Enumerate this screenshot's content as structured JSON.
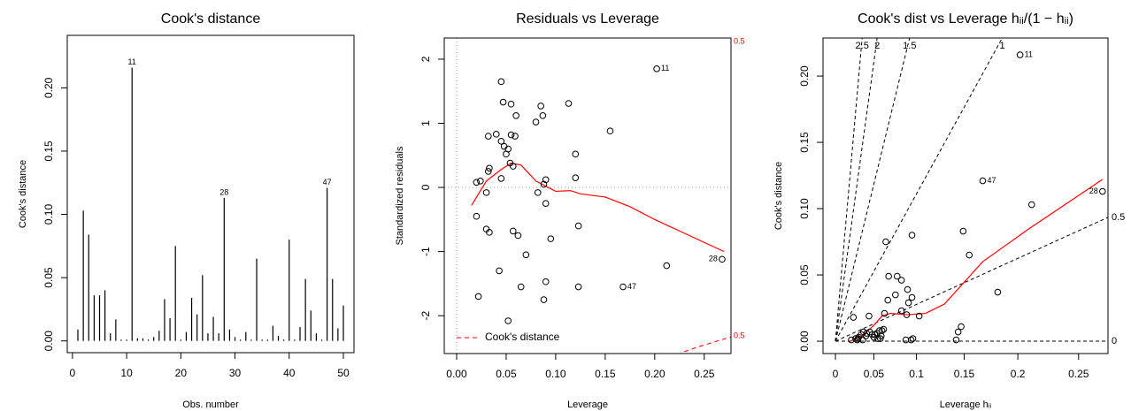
{
  "chart_data": [
    {
      "type": "needle",
      "title": "Cook's distance",
      "x_label": "Obs. number",
      "y_label": "Cook's distance",
      "color": "#000000",
      "x": [
        1,
        2,
        3,
        4,
        5,
        6,
        7,
        8,
        9,
        10,
        11,
        12,
        13,
        14,
        15,
        16,
        17,
        18,
        19,
        20,
        21,
        22,
        23,
        24,
        25,
        26,
        27,
        28,
        29,
        30,
        31,
        32,
        33,
        34,
        35,
        36,
        37,
        38,
        39,
        40,
        41,
        42,
        43,
        44,
        45,
        46,
        47,
        48,
        49,
        50
      ],
      "values": [
        0.009,
        0.103,
        0.084,
        0.036,
        0.036,
        0.04,
        0.006,
        0.017,
        0.001,
        0.001,
        0.216,
        0.002,
        0.002,
        0.001,
        0.003,
        0.008,
        0.033,
        0.018,
        0.075,
        0.001,
        0.007,
        0.034,
        0.021,
        0.052,
        0.006,
        0.019,
        0.006,
        0.113,
        0.009,
        0.003,
        0.001,
        0.007,
        0.001,
        0.065,
        0.001,
        0.001,
        0.012,
        0.004,
        0.001,
        0.08,
        0.001,
        0.011,
        0.049,
        0.024,
        0.006,
        0.001,
        0.121,
        0.049,
        0.01,
        0.028
      ],
      "point_labels": [
        null,
        null,
        null,
        null,
        null,
        null,
        null,
        null,
        null,
        null,
        "11",
        null,
        null,
        null,
        null,
        null,
        null,
        null,
        null,
        null,
        null,
        null,
        null,
        null,
        null,
        null,
        null,
        "28",
        null,
        null,
        null,
        null,
        null,
        null,
        null,
        null,
        null,
        null,
        null,
        null,
        null,
        null,
        null,
        null,
        null,
        null,
        "47",
        null,
        null,
        null
      ],
      "xlim": [
        -0.96,
        51.96
      ],
      "ylim": [
        -0.0093,
        0.2415
      ],
      "xticks": [
        0,
        10,
        20,
        30,
        40,
        50
      ],
      "yticks": [
        {
          "value": 0,
          "label": "0.00"
        },
        {
          "value": 0.05,
          "label": "0.05"
        },
        {
          "value": 0.1,
          "label": "0.10"
        },
        {
          "value": 0.15,
          "label": "0.15"
        },
        {
          "value": 0.2,
          "label": "0.20"
        }
      ]
    },
    {
      "type": "scatter",
      "title": "Residuals vs Leverage",
      "x_label": "Leverage",
      "y_label": "Standardized residuals",
      "color": "#000000",
      "x": [
        0.045,
        0.047,
        0.055,
        0.06,
        0.085,
        0.087,
        0.113,
        0.08,
        0.032,
        0.04,
        0.055,
        0.059,
        0.045,
        0.048,
        0.052,
        0.05,
        0.155,
        0.12,
        0.054,
        0.057,
        0.033,
        0.032,
        0.12,
        0.09,
        0.02,
        0.024,
        0.045,
        0.088,
        0.03,
        0.082,
        0.09,
        0.02,
        0.03,
        0.033,
        0.057,
        0.062,
        0.123,
        0.095,
        0.07,
        0.043,
        0.09,
        0.065,
        0.123,
        0.022,
        0.088,
        0.052,
        0.202,
        0.212,
        0.268,
        0.168
      ],
      "values": [
        1.65,
        1.33,
        1.3,
        1.12,
        1.27,
        1.12,
        1.31,
        1.02,
        0.8,
        0.83,
        0.82,
        0.8,
        0.72,
        0.64,
        0.6,
        0.52,
        0.88,
        0.52,
        0.38,
        0.33,
        0.3,
        0.25,
        0.15,
        0.12,
        0.08,
        0.1,
        0.14,
        0.05,
        -0.08,
        -0.08,
        -0.25,
        -0.45,
        -0.65,
        -0.7,
        -0.68,
        -0.75,
        -0.6,
        -0.8,
        -1.05,
        -1.3,
        -1.47,
        -1.55,
        -1.55,
        -1.7,
        -1.75,
        -2.08,
        1.85,
        -1.22,
        -1.12,
        -1.55
      ],
      "point_labels": [
        null,
        null,
        null,
        null,
        null,
        null,
        null,
        null,
        null,
        null,
        null,
        null,
        null,
        null,
        null,
        null,
        null,
        null,
        null,
        null,
        null,
        null,
        null,
        null,
        null,
        null,
        null,
        null,
        null,
        null,
        null,
        null,
        null,
        null,
        null,
        null,
        null,
        null,
        null,
        null,
        null,
        null,
        null,
        null,
        null,
        null,
        "11",
        null,
        "28",
        "47"
      ],
      "smooth": {
        "color": "#ff0000",
        "x": [
          0.015,
          0.03,
          0.045,
          0.055,
          0.065,
          0.08,
          0.1,
          0.115,
          0.125,
          0.15,
          0.175,
          0.2,
          0.27
        ],
        "values": [
          -0.28,
          0.1,
          0.28,
          0.38,
          0.35,
          0.1,
          -0.06,
          -0.05,
          -0.1,
          -0.15,
          -0.3,
          -0.5,
          -1.0
        ]
      },
      "contour_name": "Cook's distance",
      "contour_color": "#ff0000",
      "legend": "bottomleft",
      "zero_lines": true,
      "contours": [
        {
          "label": 0.5,
          "x": [
            0.262,
            0.27,
            0.277
          ],
          "values": [
            2.45,
            2.39,
            2.33
          ]
        },
        {
          "label": 0.5,
          "x": [
            0.215,
            0.23,
            0.245,
            0.26,
            0.277
          ],
          "values": [
            -2.66,
            -2.56,
            -2.48,
            -2.41,
            -2.33
          ]
        }
      ],
      "xlim": [
        -0.0125,
        0.277
      ],
      "ylim": [
        -2.59,
        2.33
      ],
      "xticks": [
        {
          "value": 0,
          "label": "0.00"
        },
        {
          "value": 0.05,
          "label": "0.05"
        },
        {
          "value": 0.1,
          "label": "0.10"
        },
        {
          "value": 0.15,
          "label": "0.15"
        },
        {
          "value": 0.2,
          "label": "0.20"
        },
        {
          "value": 0.25,
          "label": "0.25"
        }
      ],
      "yticks": [
        -2,
        -1,
        0,
        1,
        2
      ]
    },
    {
      "type": "scatter",
      "title": "Cook's dist vs Leverage  hᵢᵢ/(1 − hᵢᵢ)",
      "x_label": "Leverage  hᵢᵢ",
      "y_label": "Cook's distance",
      "color": "#000000",
      "x_transform": "odds",
      "x": [
        0.202,
        0.168,
        0.268,
        0.212,
        0.0646,
        0.095,
        0.149,
        0.155,
        0.182,
        0.078,
        0.083,
        0.068,
        0.09,
        0.076,
        0.095,
        0.091,
        0.067,
        0.083,
        0.103,
        0.089,
        0.063,
        0.024,
        0.044,
        0.147,
        0.144,
        0.142,
        0.094,
        0.088,
        0.096,
        0.0213,
        0.027,
        0.031,
        0.034,
        0.037,
        0.041,
        0.045,
        0.048,
        0.051,
        0.054,
        0.057,
        0.059,
        0.062,
        0.055,
        0.036,
        0.029,
        0.03,
        0.04,
        0.05,
        0.06,
        0.058
      ],
      "values": [
        0.216,
        0.121,
        0.113,
        0.103,
        0.075,
        0.08,
        0.083,
        0.065,
        0.037,
        0.049,
        0.046,
        0.049,
        0.039,
        0.035,
        0.033,
        0.029,
        0.031,
        0.023,
        0.019,
        0.02,
        0.021,
        0.018,
        0.019,
        0.011,
        0.007,
        0.001,
        0.001,
        0.001,
        0.002,
        0.001,
        0.002,
        0.003,
        0.005,
        0.007,
        0.006,
        0.007,
        0.005,
        0.005,
        0.006,
        0.008,
        0.004,
        0.009,
        0.002,
        0.001,
        0.001,
        0.002,
        0.004,
        0.003,
        0.008,
        0.002
      ],
      "point_labels": [
        "11",
        "47",
        "28",
        null,
        null,
        null,
        null,
        null,
        null,
        null,
        null,
        null,
        null,
        null,
        null,
        null,
        null,
        null,
        null,
        null,
        null,
        null,
        null,
        null,
        null,
        null,
        null,
        null,
        null,
        null,
        null,
        null,
        null,
        null,
        null,
        null,
        null,
        null,
        null,
        null,
        null,
        null,
        null,
        null,
        null,
        null,
        null,
        null,
        null,
        null
      ],
      "smooth": {
        "color": "#ff0000",
        "x": [
          0.02,
          0.035,
          0.05,
          0.06,
          0.07,
          0.09,
          0.11,
          0.13,
          0.168,
          0.21,
          0.268
        ],
        "values": [
          0.0,
          0.004,
          0.012,
          0.019,
          0.021,
          0.02,
          0.021,
          0.028,
          0.06,
          0.085,
          0.122
        ]
      },
      "contours": {
        "levels": [
          0,
          0.5,
          1,
          1.5,
          2,
          2.5
        ],
        "slopes": [
          0,
          0.25,
          1,
          2.25,
          4,
          6.25
        ]
      },
      "xlim": [
        -0.0173,
        0.272
      ],
      "ylim": [
        -0.0093,
        0.2287
      ],
      "xticks": [
        0,
        0.05,
        0.1,
        0.15,
        0.2,
        0.25
      ],
      "yticks": [
        {
          "value": 0,
          "label": "0.00"
        },
        {
          "value": 0.05,
          "label": "0.05"
        },
        {
          "value": 0.1,
          "label": "0.10"
        },
        {
          "value": 0.15,
          "label": "0.15"
        },
        {
          "value": 0.2,
          "label": "0.20"
        }
      ]
    }
  ]
}
